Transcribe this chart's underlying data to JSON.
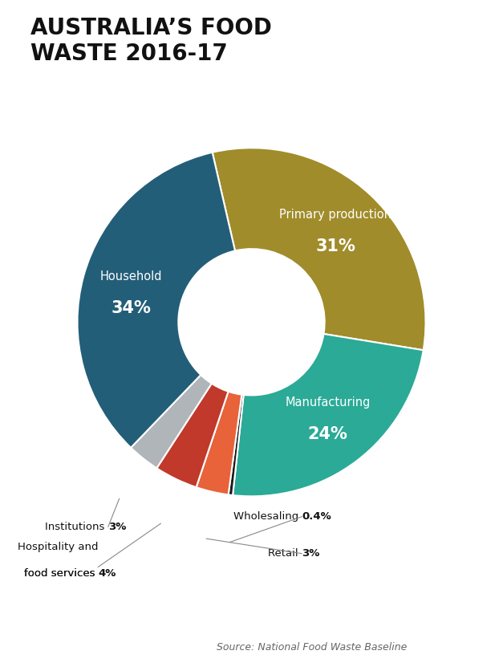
{
  "title": "AUSTRALIA’S FOOD\nWASTE 2016-17",
  "title_fontsize": 20,
  "source": "Source: National Food Waste Baseline",
  "segments": [
    {
      "label": "Primary production",
      "pct": 31,
      "color": "#a08c2a",
      "text_color": "#ffffff",
      "inside": true
    },
    {
      "label": "Manufacturing",
      "pct": 24,
      "color": "#2aaa97",
      "text_color": "#ffffff",
      "inside": true
    },
    {
      "label": "Wholesaling",
      "pct": 0.4,
      "color": "#1a1a1a",
      "text_color": "#111111",
      "inside": false
    },
    {
      "label": "Retail",
      "pct": 3,
      "color": "#e8623a",
      "text_color": "#111111",
      "inside": false
    },
    {
      "label": "Hospitality and food services",
      "pct": 4,
      "color": "#c0392b",
      "text_color": "#111111",
      "inside": false
    },
    {
      "label": "Institutions",
      "pct": 3,
      "color": "#b0b5ba",
      "text_color": "#111111",
      "inside": false
    },
    {
      "label": "Household",
      "pct": 34,
      "color": "#235e78",
      "text_color": "#ffffff",
      "inside": true
    }
  ],
  "pct_labels": [
    "31%",
    "24%",
    "0.4%",
    "3%",
    "4%",
    "3%",
    "34%"
  ],
  "donut_inner_ratio": 0.42,
  "fig_bg": "#ffffff",
  "startangle": 103
}
